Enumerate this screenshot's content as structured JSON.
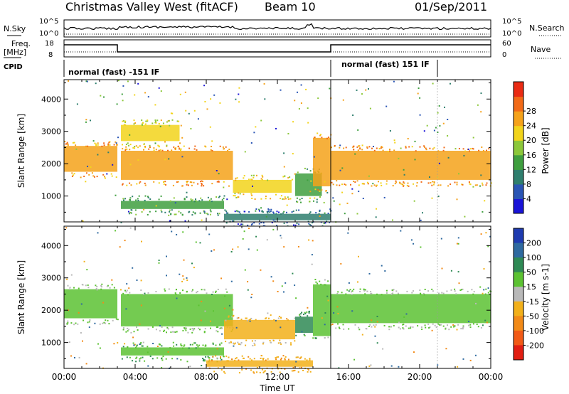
{
  "header": {
    "title": "Christmas Valley West (fitACF)",
    "beam": "Beam 10",
    "date": "01/Sep/2011"
  },
  "top_panels": {
    "nsky_label": "N.Sky",
    "nsky_ticks": [
      "10^5",
      "10^0"
    ],
    "nsearch_label": "N.Search",
    "nsearch_ticks": [
      "10^5",
      "10^0"
    ],
    "freq_label_1": "Freq.",
    "freq_label_2": "[MHz]",
    "freq_ticks": [
      "18",
      "8"
    ],
    "nave_label": "Nave",
    "nave_ticks": [
      "60",
      "0"
    ],
    "cpid_label": "CPID",
    "cpid_segments": [
      {
        "label": "normal (fast) -151 IF",
        "start_hour": 0,
        "end_hour": 15
      },
      {
        "label": "normal (fast) 151 IF",
        "start_hour": 15,
        "end_hour": 21
      }
    ]
  },
  "chart_data": [
    {
      "type": "heatmap",
      "name": "power",
      "ylabel": "Slant Range [km]",
      "yticks": [
        1000,
        2000,
        3000,
        4000
      ],
      "ylim": [
        200,
        4600
      ],
      "xlim": [
        0,
        24
      ],
      "colorbar": {
        "label": "Power [dB]",
        "ticks": [
          "4",
          "8",
          "12",
          "16",
          "20",
          "24",
          "28"
        ],
        "colors": [
          "#1a14d8",
          "#2a55b5",
          "#2f7f6e",
          "#3f9f3f",
          "#8cc83a",
          "#f2d41b",
          "#f5a21a",
          "#f26a18",
          "#ea2b14"
        ]
      },
      "bands": [
        {
          "t0": 0,
          "t1": 3,
          "r0": 1750,
          "r1": 2550,
          "level": 26
        },
        {
          "t0": 3.2,
          "t1": 9.5,
          "r0": 1500,
          "r1": 2400,
          "level": 27
        },
        {
          "t0": 3.2,
          "t1": 6.5,
          "r0": 2700,
          "r1": 3200,
          "level": 20
        },
        {
          "t0": 9.5,
          "t1": 12.8,
          "r0": 1100,
          "r1": 1500,
          "level": 22
        },
        {
          "t0": 13.0,
          "t1": 14.5,
          "r0": 1000,
          "r1": 1700,
          "level": 14
        },
        {
          "t0": 14.0,
          "t1": 15.0,
          "r0": 1300,
          "r1": 2800,
          "level": 26
        },
        {
          "t0": 15.0,
          "t1": 24,
          "r0": 1500,
          "r1": 2400,
          "level": 27
        },
        {
          "t0": 3.2,
          "t1": 9.0,
          "r0": 600,
          "r1": 850,
          "level": 14
        },
        {
          "t0": 9.0,
          "t1": 15,
          "r0": 250,
          "r1": 450,
          "level": 8
        }
      ]
    },
    {
      "type": "heatmap",
      "name": "velocity",
      "ylabel": "Slant Range [km]",
      "xlabel": "Time UT",
      "yticks": [
        1000,
        2000,
        3000,
        4000
      ],
      "ylim": [
        200,
        4600
      ],
      "xlim": [
        0,
        24
      ],
      "xticks": [
        "00:00",
        "04:00",
        "08:00",
        "12:00",
        "16:00",
        "20:00",
        "00:00"
      ],
      "colorbar": {
        "label": "Velocity [m s-1]",
        "ticks": [
          "200",
          "100",
          "50",
          "15",
          "-15",
          "-50",
          "-100",
          "-200"
        ],
        "colors": [
          "#1f3bb0",
          "#2f6aa0",
          "#2f8a55",
          "#5cc232",
          "#b9b9b9",
          "#f2b01a",
          "#f28a18",
          "#f25a16",
          "#e21e12"
        ]
      },
      "bands": [
        {
          "t0": 0,
          "t1": 3,
          "r0": 1750,
          "r1": 2650,
          "velocity": 0
        },
        {
          "t0": 3.2,
          "t1": 9.5,
          "r0": 1500,
          "r1": 2500,
          "velocity": 0
        },
        {
          "t0": 9.0,
          "t1": 13.0,
          "r0": 1100,
          "r1": 1700,
          "velocity": -40
        },
        {
          "t0": 13.0,
          "t1": 14.0,
          "r0": 1300,
          "r1": 1800,
          "velocity": 40
        },
        {
          "t0": 14.0,
          "t1": 15.0,
          "r0": 1200,
          "r1": 2800,
          "velocity": 20
        },
        {
          "t0": 15.0,
          "t1": 24,
          "r0": 1600,
          "r1": 2500,
          "velocity": 0
        },
        {
          "t0": 3.2,
          "t1": 9.0,
          "r0": 600,
          "r1": 850,
          "velocity": 30
        },
        {
          "t0": 8.0,
          "t1": 14.0,
          "r0": 250,
          "r1": 450,
          "velocity": -60
        }
      ]
    }
  ]
}
